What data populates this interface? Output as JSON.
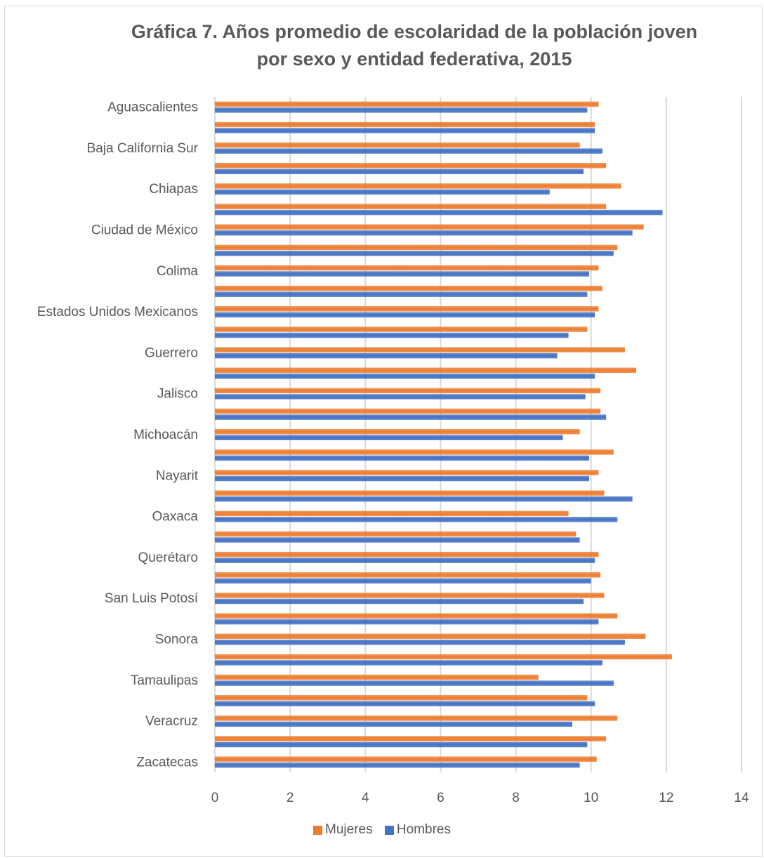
{
  "chart_data": {
    "type": "bar",
    "orientation": "horizontal",
    "title": "Gráfica 7. Años promedio de escolaridad de la población joven por sexo y entidad federativa, 2015",
    "title_lines": [
      "Gráfica 7. Años promedio de escolaridad de la población joven",
      "por sexo y entidad federativa, 2015"
    ],
    "xlim": [
      0,
      14
    ],
    "xticks": [
      0,
      2,
      4,
      6,
      8,
      10,
      12,
      14
    ],
    "grid": true,
    "legend_position": "bottom",
    "categories": [
      "Aguascalientes",
      "",
      "Baja California Sur",
      "",
      "Chiapas",
      "",
      "Ciudad de México",
      "",
      "Colima",
      "",
      "Estados Unidos Mexicanos",
      "",
      "Guerrero",
      "",
      "Jalisco",
      "",
      "Michoacán",
      "",
      "Nayarit",
      "",
      "Oaxaca",
      "",
      "Querétaro",
      "",
      "San Luis Potosí",
      "",
      "Sonora",
      "",
      "Tamaulipas",
      "",
      "Veracruz",
      "",
      "Zacatecas"
    ],
    "series": [
      {
        "name": "Mujeres",
        "color": "#ED7D31",
        "values": [
          10.2,
          10.1,
          9.7,
          10.4,
          10.8,
          10.4,
          11.4,
          10.7,
          10.2,
          10.3,
          10.2,
          9.9,
          10.9,
          11.2,
          10.25,
          10.25,
          9.7,
          10.6,
          10.2,
          10.35,
          9.4,
          9.6,
          10.2,
          10.25,
          10.35,
          10.7,
          11.45,
          12.15,
          8.6,
          9.9,
          10.7,
          10.4,
          10.15
        ]
      },
      {
        "name": "Hombres",
        "color": "#4472C4",
        "values": [
          9.9,
          10.1,
          10.3,
          9.8,
          8.9,
          11.9,
          11.1,
          10.6,
          9.95,
          9.9,
          10.1,
          9.4,
          9.1,
          10.1,
          9.85,
          10.4,
          9.25,
          9.95,
          9.95,
          11.1,
          10.7,
          9.7,
          10.1,
          10.0,
          9.8,
          10.2,
          10.9,
          10.3,
          10.6,
          10.1,
          9.5,
          9.9,
          9.7
        ]
      }
    ]
  },
  "legend": {
    "mujeres_label": "Mujeres",
    "hombres_label": "Hombres"
  }
}
